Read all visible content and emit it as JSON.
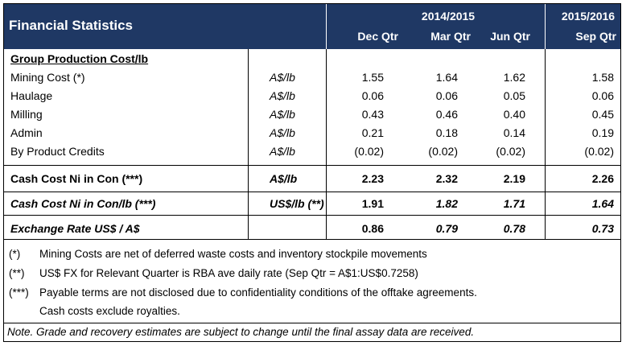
{
  "header": {
    "title": "Financial Statistics",
    "period_1": "2014/2015",
    "period_2": "2015/2016",
    "quarters": [
      "Dec Qtr",
      "Mar Qtr",
      "Jun Qtr",
      "Sep Qtr"
    ]
  },
  "section_title": "Group Production Cost/lb",
  "rows": [
    {
      "label": "Mining Cost (*)",
      "unit": "A$/lb",
      "values": [
        "1.55",
        "1.64",
        "1.62",
        "1.58"
      ]
    },
    {
      "label": "Haulage",
      "unit": "A$/lb",
      "values": [
        "0.06",
        "0.06",
        "0.05",
        "0.06"
      ]
    },
    {
      "label": "Milling",
      "unit": "A$/lb",
      "values": [
        "0.43",
        "0.46",
        "0.40",
        "0.45"
      ]
    },
    {
      "label": "Admin",
      "unit": "A$/lb",
      "values": [
        "0.21",
        "0.18",
        "0.14",
        "0.19"
      ]
    },
    {
      "label": "By Product Credits",
      "unit": "A$/lb",
      "values": [
        "(0.02)",
        "(0.02)",
        "(0.02)",
        "(0.02)"
      ]
    }
  ],
  "cash_cost_aud": {
    "label": "Cash Cost Ni in Con (***)",
    "unit": "A$/lb",
    "values": [
      "2.23",
      "2.32",
      "2.19",
      "2.26"
    ]
  },
  "cash_cost_usd": {
    "label": "Cash Cost Ni in Con/lb (***)",
    "unit": "US$/lb (**)",
    "values": [
      "1.91",
      "1.82",
      "1.71",
      "1.64"
    ]
  },
  "exchange_rate": {
    "label": "Exchange Rate US$ / A$",
    "values": [
      "0.86",
      "0.79",
      "0.78",
      "0.73"
    ]
  },
  "notes": [
    {
      "mark": "(*)",
      "text": "Mining Costs are net of deferred waste costs and inventory stockpile movements"
    },
    {
      "mark": "(**)",
      "text": "US$ FX for Relevant Quarter is RBA ave daily rate  (Sep Qtr = A$1:US$0.7258)"
    },
    {
      "mark": "(***)",
      "text": "Payable terms are not disclosed due to confidentiality conditions of the offtake agreements."
    },
    {
      "mark": "",
      "text": "Cash costs exclude royalties."
    }
  ],
  "disclaimer": "Note. Grade and recovery estimates are subject to change until the final assay data are received."
}
